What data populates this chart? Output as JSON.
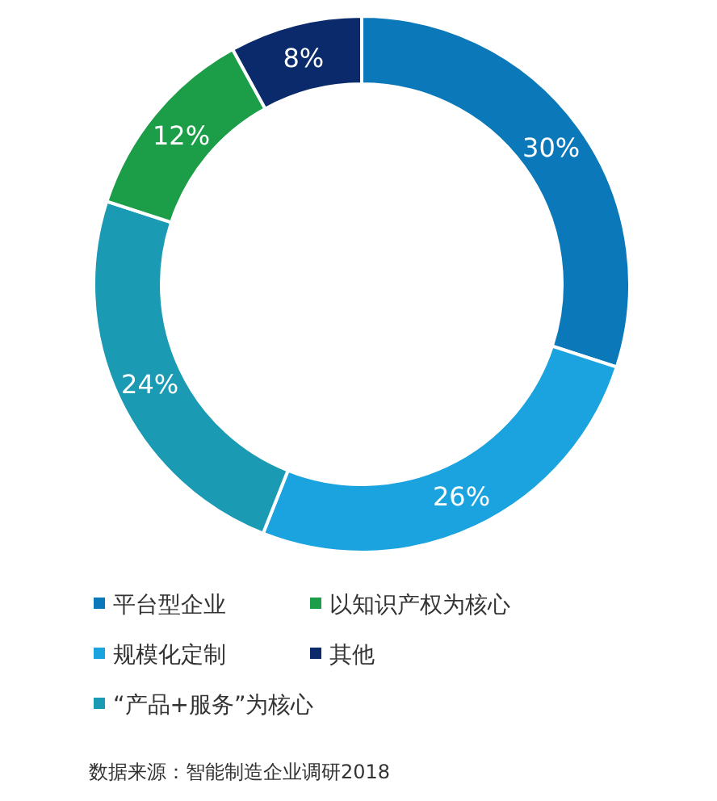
{
  "chart_data": {
    "type": "donut",
    "categories": [
      "平台型企业",
      "规模化定制",
      "“产品+服务”为核心",
      "以知识产权为核心",
      "其他"
    ],
    "values": [
      30,
      26,
      24,
      12,
      8
    ],
    "value_labels": [
      "30%",
      "26%",
      "24%",
      "12%",
      "8%"
    ],
    "colors": [
      "#0a78b9",
      "#1aa3df",
      "#1a9bb3",
      "#1c9e48",
      "#0b2a6b"
    ],
    "legend": "bottom",
    "annotations": [
      "数据来源：智能制造企业调研2018"
    ]
  }
}
